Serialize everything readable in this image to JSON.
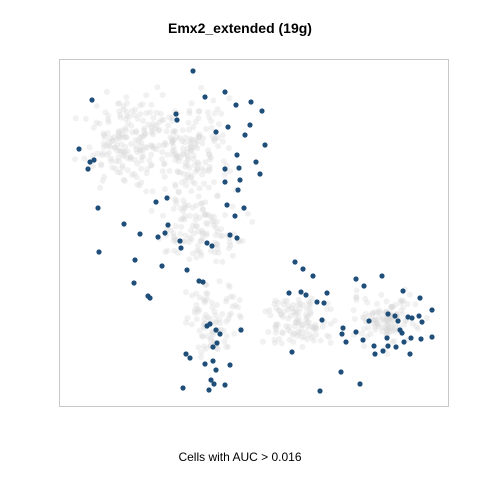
{
  "chart_data": {
    "type": "scatter",
    "title": "Emx2_extended (19g)",
    "xlabel": "Cells with AUC > 0.016",
    "ylabel": "",
    "grid": false,
    "legend": "none",
    "colors": {
      "highlight": "#1f4e79",
      "background": "#d8d8d8",
      "frame": "#c8c8c8"
    },
    "series": [
      {
        "name": "",
        "color": "#1f4e79",
        "points": [
          [
            193,
            71
          ],
          [
            225,
            92
          ],
          [
            92,
            100
          ],
          [
            205,
            97
          ],
          [
            251,
            102
          ],
          [
            176,
            114
          ],
          [
            177,
            120
          ],
          [
            236,
            105
          ],
          [
            262,
            111
          ],
          [
            250,
            125
          ],
          [
            228,
            127
          ],
          [
            216,
            132
          ],
          [
            245,
            135
          ],
          [
            79,
            149
          ],
          [
            265,
            145
          ],
          [
            256,
            162
          ],
          [
            237,
            155
          ],
          [
            90,
            162
          ],
          [
            94,
            160
          ],
          [
            88,
            169
          ],
          [
            225,
            169
          ],
          [
            239,
            168
          ],
          [
            260,
            174
          ],
          [
            225,
            182
          ],
          [
            240,
            180
          ],
          [
            238,
            190
          ],
          [
            167,
            198
          ],
          [
            98,
            208
          ],
          [
            227,
            205
          ],
          [
            244,
            208
          ],
          [
            156,
            202
          ],
          [
            235,
            216
          ],
          [
            168,
            225
          ],
          [
            124,
            224
          ],
          [
            165,
            233
          ],
          [
            140,
            234
          ],
          [
            158,
            237
          ],
          [
            180,
            241
          ],
          [
            181,
            248
          ],
          [
            230,
            235
          ],
          [
            237,
            238
          ],
          [
            207,
            243
          ],
          [
            212,
            246
          ],
          [
            99,
            252
          ],
          [
            135,
            260
          ],
          [
            162,
            266
          ],
          [
            187,
            270
          ],
          [
            199,
            281
          ],
          [
            203,
            282
          ],
          [
            134,
            283
          ],
          [
            148,
            296
          ],
          [
            150,
            298
          ],
          [
            295,
            262
          ],
          [
            303,
            269
          ],
          [
            313,
            276
          ],
          [
            301,
            292
          ],
          [
            289,
            293
          ],
          [
            306,
            295
          ],
          [
            317,
            302
          ],
          [
            324,
            303
          ],
          [
            327,
            293
          ],
          [
            356,
            279
          ],
          [
            382,
            276
          ],
          [
            364,
            286
          ],
          [
            403,
            291
          ],
          [
            420,
            298
          ],
          [
            322,
            320
          ],
          [
            343,
            328
          ],
          [
            369,
            321
          ],
          [
            388,
            314
          ],
          [
            395,
            316
          ],
          [
            400,
            330
          ],
          [
            398,
            321
          ],
          [
            408,
            317
          ],
          [
            412,
            318
          ],
          [
            419,
            316
          ],
          [
            422,
            322
          ],
          [
            432,
            310
          ],
          [
            342,
            334
          ],
          [
            346,
            342
          ],
          [
            356,
            332
          ],
          [
            363,
            340
          ],
          [
            374,
            346
          ],
          [
            387,
            338
          ],
          [
            388,
            346
          ],
          [
            396,
            347
          ],
          [
            402,
            333
          ],
          [
            404,
            342
          ],
          [
            411,
            338
          ],
          [
            421,
            339
          ],
          [
            432,
            337
          ],
          [
            207,
            326
          ],
          [
            210,
            324
          ],
          [
            216,
            330
          ],
          [
            220,
            334
          ],
          [
            217,
            343
          ],
          [
            213,
            347
          ],
          [
            241,
            330
          ],
          [
            186,
            354
          ],
          [
            190,
            358
          ],
          [
            205,
            364
          ],
          [
            213,
            361
          ],
          [
            216,
            370
          ],
          [
            230,
            365
          ],
          [
            211,
            380
          ],
          [
            214,
            384
          ],
          [
            225,
            385
          ],
          [
            209,
            390
          ],
          [
            183,
            388
          ],
          [
            292,
            352
          ],
          [
            375,
            354
          ],
          [
            383,
            351
          ],
          [
            410,
            354
          ],
          [
            341,
            372
          ],
          [
            360,
            384
          ],
          [
            320,
            391
          ]
        ]
      }
    ]
  }
}
